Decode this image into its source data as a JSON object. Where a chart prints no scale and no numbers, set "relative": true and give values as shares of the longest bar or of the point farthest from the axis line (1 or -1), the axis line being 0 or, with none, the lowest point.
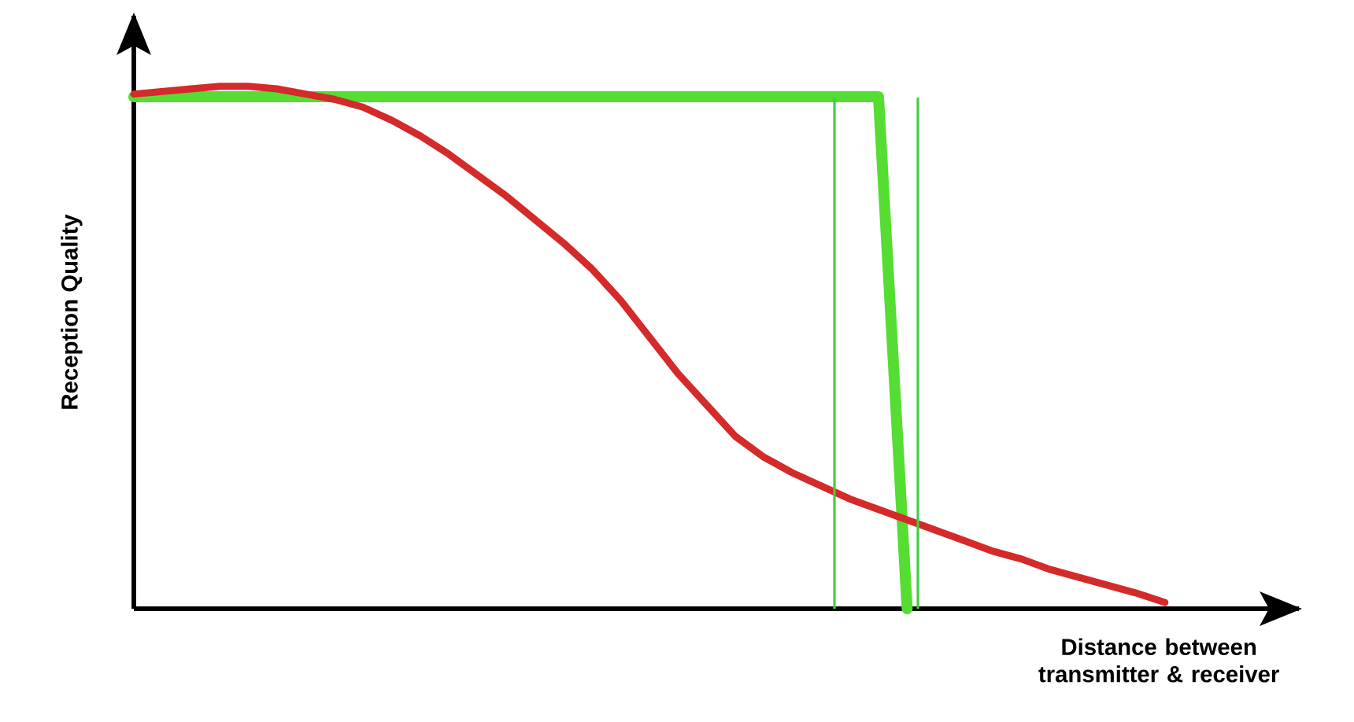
{
  "chart_data": {
    "type": "line",
    "relative": true,
    "xlabel": "Distance between transmitter & receiver",
    "ylabel": "Reception Quality",
    "tick_labels": false,
    "marker": "none",
    "line_style": "solid",
    "categories": [
      null,
      null,
      null,
      null,
      null,
      null,
      null,
      null,
      null,
      null,
      null,
      null,
      null,
      null,
      null,
      null,
      null,
      null,
      null,
      null,
      null,
      null,
      null,
      null,
      null,
      null,
      null,
      null,
      null,
      null,
      null,
      null,
      null,
      null,
      null,
      null,
      null
    ],
    "series": [
      {
        "color": "#55dd33",
        "values": [
          0.98,
          0.98,
          0.98,
          0.98,
          0.98,
          0.98,
          0.98,
          0.98,
          0.98,
          0.98,
          0.98,
          0.98,
          0.98,
          0.98,
          0.98,
          0.98,
          0.98,
          0.98,
          0.98,
          0.98,
          0.98,
          0.98,
          0.98,
          0.98,
          0.98,
          0.98,
          0.98,
          0,
          null,
          null,
          null,
          null,
          null,
          null,
          null,
          null,
          null
        ]
      },
      {
        "color": "#d42a2a",
        "values": [
          0.985,
          0.99,
          0.995,
          1.0,
          1.0,
          0.995,
          0.985,
          0.975,
          0.96,
          0.935,
          0.905,
          0.87,
          0.83,
          0.79,
          0.745,
          0.7,
          0.65,
          0.59,
          0.52,
          0.45,
          0.39,
          0.33,
          0.29,
          0.26,
          0.235,
          0.21,
          0.19,
          0.17,
          0.15,
          0.13,
          0.11,
          0.095,
          0.075,
          0.06,
          0.045,
          0.03,
          0.012
        ]
      }
    ]
  }
}
